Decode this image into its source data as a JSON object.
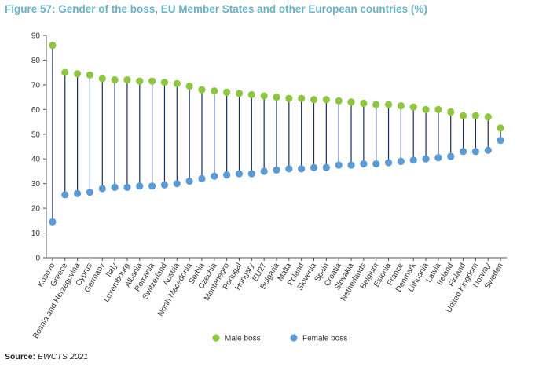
{
  "title": "Figure 57: Gender of the boss, EU Member States and other European countries (%)",
  "source_label": "Source:",
  "source_value": "EWCTS 2021",
  "colors": {
    "male": "#8dc63f",
    "female": "#5b9bd5",
    "connector": "#1f2d5a",
    "title": "#69b3c2"
  },
  "chart_data": {
    "type": "dot-plot",
    "ylim": [
      0,
      90
    ],
    "yticks": [
      0,
      10,
      20,
      30,
      40,
      50,
      60,
      70,
      80,
      90
    ],
    "legend_position": "bottom",
    "grid": false,
    "categories": [
      "Kosovo",
      "Greece",
      "Bosnia and Herzegovina",
      "Cyprus",
      "Germany",
      "Italy",
      "Luxembourg",
      "Albania",
      "Romania",
      "Switzerland",
      "Austria",
      "North Macedonia",
      "Serbia",
      "Czechia",
      "Montenegro",
      "Portugal",
      "Hungary",
      "EU27",
      "Bulgaria",
      "Malta",
      "Poland",
      "Slovenia",
      "Spain",
      "Croatia",
      "Slovakia",
      "Netherlands",
      "Belgium",
      "Estonia",
      "France",
      "Denmark",
      "Lithuania",
      "Latvia",
      "Ireland",
      "Finland",
      "United Kingdom",
      "Norway",
      "Sweden"
    ],
    "series": [
      {
        "name": "Male boss",
        "values": [
          86,
          75,
          74.5,
          74,
          72.5,
          72,
          72,
          71.5,
          71.5,
          71,
          70.5,
          69.5,
          68,
          67.5,
          67,
          66.5,
          66,
          65.5,
          65,
          64.5,
          64.5,
          64,
          64,
          63.5,
          63,
          62.5,
          62,
          62,
          61.5,
          61,
          60,
          60,
          59,
          57.5,
          57.5,
          57,
          52.5
        ]
      },
      {
        "name": "Female boss",
        "values": [
          14.5,
          25.5,
          26,
          26.5,
          28,
          28.5,
          28.5,
          29,
          29,
          29.5,
          30,
          31,
          32,
          33,
          33.5,
          34,
          34,
          35,
          35.5,
          36,
          36,
          36.5,
          36.5,
          37.5,
          37.5,
          38,
          38,
          38.5,
          39,
          39.5,
          40,
          40.5,
          41,
          43,
          43,
          43.5,
          47.5
        ]
      }
    ]
  }
}
